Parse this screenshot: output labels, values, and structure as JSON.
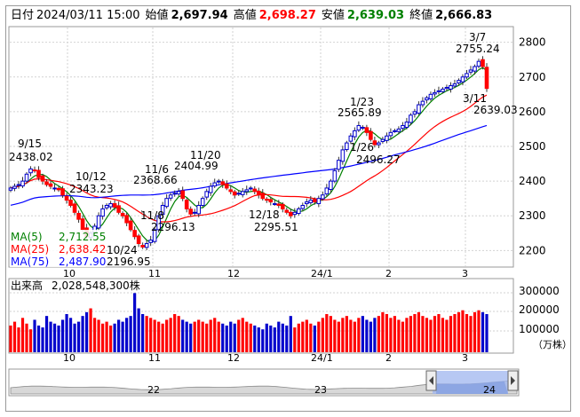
{
  "header": {
    "date_label": "日付",
    "datetime": "2024/03/11 15:00",
    "open_label": "始値",
    "open": "2,697.94",
    "high_label": "高値",
    "high": "2,698.27",
    "low_label": "安値",
    "low": "2,639.03",
    "close_label": "終値",
    "close": "2,666.83"
  },
  "colors": {
    "up": "#0000cc",
    "down": "#ff0000",
    "ma5": "#008000",
    "ma25": "#ff0000",
    "ma75": "#0000ff",
    "volume_up": "#ff0000",
    "volume_down": "#0000cc",
    "navigator_fill": "#9fb6ef"
  },
  "price_axis": {
    "ticks": [
      "2800",
      "2700",
      "2600",
      "2500",
      "2400",
      "2300",
      "2200"
    ]
  },
  "x_axis": {
    "labels": [
      "10",
      "11",
      "12",
      "24/1",
      "2",
      "3"
    ]
  },
  "annotations": [
    {
      "date": "9/15",
      "value": "2438.02"
    },
    {
      "date": "10/12",
      "value": "2343.23"
    },
    {
      "date": "11/6",
      "value": "2368.66"
    },
    {
      "date": "11/20",
      "value": "2404.99"
    },
    {
      "date": "11/8",
      "value": "2296.13"
    },
    {
      "date": "10/24",
      "value": "2196.95"
    },
    {
      "date": "12/18",
      "value": "2295.51"
    },
    {
      "date": "1/23",
      "value": "2565.89"
    },
    {
      "date": "1/26",
      "value": "2496.27"
    },
    {
      "date": "3/7",
      "value": "2755.24"
    },
    {
      "date": "3/11",
      "value": "2639.03"
    }
  ],
  "legend": [
    {
      "label": "MA(5)",
      "value": "2,712.55"
    },
    {
      "label": "MA(25)",
      "value": "2,638.42"
    },
    {
      "label": "MA(75)",
      "value": "2,487.90"
    }
  ],
  "volume": {
    "title": "出来高",
    "total": "2,028,548,300株",
    "ticks": [
      "300000",
      "200000",
      "100000"
    ],
    "unit": "（万株）"
  },
  "navigator": {
    "labels": [
      "22",
      "23",
      "24"
    ]
  },
  "chart_data": {
    "type": "candlestick",
    "period": "daily, 2023/09 – 2024/03/11",
    "ylim": [
      2160,
      2840
    ],
    "price_series": [
      {
        "name": "MA(5)"
      },
      {
        "name": "MA(25)"
      },
      {
        "name": "MA(75)"
      }
    ],
    "candles_close": [
      2380,
      2385,
      2390,
      2400,
      2420,
      2435,
      2430,
      2410,
      2400,
      2390,
      2385,
      2380,
      2375,
      2360,
      2345,
      2330,
      2310,
      2290,
      2260,
      2240,
      2250,
      2270,
      2300,
      2320,
      2330,
      2335,
      2325,
      2310,
      2300,
      2280,
      2260,
      2240,
      2220,
      2210,
      2220,
      2230,
      2260,
      2300,
      2330,
      2350,
      2360,
      2365,
      2370,
      2350,
      2320,
      2305,
      2310,
      2330,
      2350,
      2370,
      2385,
      2395,
      2400,
      2390,
      2380,
      2370,
      2360,
      2365,
      2370,
      2375,
      2380,
      2370,
      2360,
      2350,
      2345,
      2340,
      2335,
      2330,
      2320,
      2310,
      2300,
      2310,
      2320,
      2330,
      2340,
      2345,
      2340,
      2350,
      2360,
      2380,
      2400,
      2430,
      2460,
      2490,
      2510,
      2530,
      2545,
      2560,
      2555,
      2540,
      2520,
      2505,
      2510,
      2520,
      2530,
      2540,
      2545,
      2550,
      2560,
      2570,
      2590,
      2600,
      2620,
      2630,
      2640,
      2650,
      2655,
      2660,
      2665,
      2670,
      2675,
      2680,
      2690,
      2700,
      2710,
      2720,
      2730,
      2745,
      2730,
      2667
    ],
    "volume_values": [
      140000,
      160000,
      130000,
      180000,
      150000,
      120000,
      170000,
      140000,
      130000,
      190000,
      160000,
      150000,
      140000,
      170000,
      200000,
      180000,
      150000,
      160000,
      190000,
      210000,
      230000,
      180000,
      170000,
      150000,
      160000,
      140000,
      150000,
      170000,
      160000,
      180000,
      190000,
      310000,
      230000,
      200000,
      190000,
      180000,
      170000,
      160000,
      150000,
      170000,
      180000,
      200000,
      190000,
      170000,
      160000,
      150000,
      160000,
      170000,
      160000,
      150000,
      170000,
      180000,
      160000,
      150000,
      140000,
      160000,
      150000,
      170000,
      180000,
      160000,
      150000,
      140000,
      130000,
      120000,
      150000,
      140000,
      130000,
      160000,
      150000,
      140000,
      190000,
      130000,
      150000,
      160000,
      170000,
      150000,
      140000,
      160000,
      180000,
      200000,
      190000,
      170000,
      160000,
      180000,
      190000,
      170000,
      160000,
      180000,
      190000,
      170000,
      160000,
      180000,
      190000,
      210000,
      200000,
      180000,
      190000,
      170000,
      160000,
      180000,
      190000,
      200000,
      210000,
      190000,
      180000,
      170000,
      190000,
      200000,
      180000,
      170000,
      190000,
      200000,
      210000,
      220000,
      200000,
      190000,
      210000,
      220000,
      210000,
      200000
    ]
  }
}
